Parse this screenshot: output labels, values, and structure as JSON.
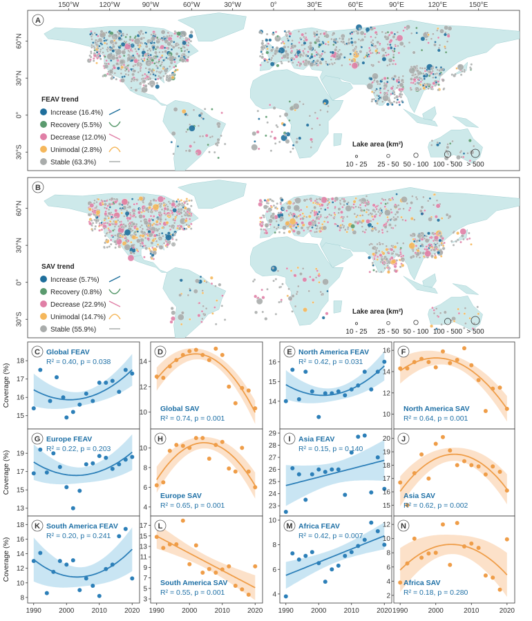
{
  "colors": {
    "increase": "#1f6f9c",
    "recovery": "#5a9a6e",
    "decrease": "#e07fa6",
    "unimodal": "#f5b75b",
    "stable": "#a9acab",
    "land": "#cde9ea",
    "feav_line": "#2c7fb8",
    "feav_band": "#bfe1f1",
    "sav_line": "#ef9d48",
    "sav_band": "#fbdcbf",
    "feav_text": "#1d6fa5",
    "sav_text": "#1d6fa5"
  },
  "maps": {
    "lon_ticks": [
      "150°W",
      "120°W",
      "90°W",
      "60°W",
      "30°W",
      "0°",
      "30°E",
      "60°E",
      "90°E",
      "120°E",
      "150°E"
    ],
    "lat_ticks": [
      "60°N",
      "30°N",
      "0°",
      "30°S"
    ],
    "size_legend": {
      "title": "Lake area (km²)",
      "labels": [
        "10 - 25",
        "25 - 50",
        "50 - 100",
        "100 - 500",
        "> 500"
      ]
    },
    "panels": [
      {
        "letter": "A",
        "legend_title": "FEAV trend",
        "legend": [
          {
            "key": "increase",
            "label": "Increase (16.4%)"
          },
          {
            "key": "recovery",
            "label": "Recovery (5.5%)"
          },
          {
            "key": "decrease",
            "label": "Decrease (12.0%)"
          },
          {
            "key": "unimodal",
            "label": "Unimodal (2.8%)"
          },
          {
            "key": "stable",
            "label": "Stable (63.3%)"
          }
        ]
      },
      {
        "letter": "B",
        "legend_title": "SAV trend",
        "legend": [
          {
            "key": "increase",
            "label": "Increase (5.7%)"
          },
          {
            "key": "recovery",
            "label": "Recovery (0.8%)"
          },
          {
            "key": "decrease",
            "label": "Decrease (22.9%)"
          },
          {
            "key": "unimodal",
            "label": "Unimodal (14.7%)"
          },
          {
            "key": "stable",
            "label": "Stable (55.9%)"
          }
        ]
      }
    ]
  },
  "chart_data": [
    {
      "letter": "C",
      "type": "scatter",
      "kind": "feav",
      "title": "Global FEAV",
      "stat": "R² = 0.40, p = 0.038",
      "ylim": [
        14.5,
        18.8
      ],
      "yticks": [
        15,
        16,
        17,
        18
      ],
      "fit": "quadratic",
      "x": [
        1990,
        1992,
        1995,
        1997,
        1999,
        2000,
        2002,
        2004,
        2006,
        2008,
        2010,
        2012,
        2014,
        2016,
        2018,
        2020
      ],
      "y": [
        15.4,
        17.5,
        15.8,
        17.1,
        16.0,
        14.9,
        15.2,
        15.6,
        16.2,
        15.8,
        16.8,
        16.8,
        16.9,
        16.3,
        17.5,
        17.3
      ]
    },
    {
      "letter": "D",
      "type": "scatter",
      "kind": "sav",
      "title": "Global SAV",
      "stat": "R² = 0.74, p = 0.001",
      "ylim": [
        9.0,
        15.2
      ],
      "yticks": [
        10,
        12,
        14
      ],
      "fit": "quadratic",
      "x": [
        1990,
        1992,
        1994,
        1996,
        1998,
        2000,
        2002,
        2004,
        2006,
        2008,
        2010,
        2012,
        2014,
        2016,
        2018,
        2020
      ],
      "y": [
        12.8,
        12.7,
        13.6,
        14.1,
        14.5,
        14.8,
        14.9,
        14.5,
        14.1,
        15.0,
        14.5,
        12.0,
        10.7,
        11.9,
        11.7,
        10.3
      ]
    },
    {
      "letter": "E",
      "type": "scatter",
      "kind": "feav",
      "title": "North America FEAV",
      "stat": "R² = 0.42, p = 0.031",
      "ylim": [
        12.8,
        16.8
      ],
      "yticks": [
        14,
        15,
        16
      ],
      "fit": "quadratic",
      "x": [
        1990,
        1992,
        1994,
        1996,
        1998,
        2000,
        2002,
        2004,
        2006,
        2008,
        2010,
        2012,
        2014,
        2016,
        2018,
        2020
      ],
      "y": [
        14.0,
        15.6,
        14.1,
        15.5,
        14.5,
        13.2,
        14.4,
        14.4,
        14.5,
        14.3,
        14.6,
        14.8,
        15.5,
        14.6,
        15.5,
        16.0
      ]
    },
    {
      "letter": "F",
      "type": "scatter",
      "kind": "sav",
      "title": "North America SAV",
      "stat": "R² = 0.64, p = 0.001",
      "ylim": [
        9.0,
        16.4
      ],
      "yticks": [
        10,
        12,
        14,
        16
      ],
      "fit": "quadratic",
      "x": [
        1990,
        1992,
        1994,
        1996,
        1998,
        2000,
        2002,
        2004,
        2006,
        2008,
        2010,
        2012,
        2014,
        2016,
        2018,
        2020
      ],
      "y": [
        14.3,
        14.3,
        14.9,
        15.2,
        14.9,
        14.4,
        15.9,
        14.8,
        15.1,
        16.2,
        14.6,
        13.2,
        10.3,
        12.4,
        12.5,
        10.5
      ]
    },
    {
      "letter": "G",
      "type": "scatter",
      "kind": "feav",
      "title": "Europe FEAV",
      "stat": "R² = 0.22, p = 0.203",
      "ylim": [
        12.6,
        21.2
      ],
      "yticks": [
        13,
        15,
        17,
        19
      ],
      "fit": "quadratic",
      "x": [
        1990,
        1992,
        1994,
        1996,
        1998,
        2000,
        2002,
        2004,
        2006,
        2008,
        2010,
        2012,
        2014,
        2016,
        2018,
        2020
      ],
      "y": [
        16.8,
        19.4,
        16.9,
        19.0,
        17.5,
        15.3,
        13.0,
        14.9,
        17.8,
        17.9,
        18.7,
        18.5,
        17.3,
        17.8,
        18.3,
        18.6
      ]
    },
    {
      "letter": "H",
      "type": "scatter",
      "kind": "sav",
      "title": "Europe SAV",
      "stat": "R² = 0.65, p = 0.001",
      "ylim": [
        3.5,
        11.5
      ],
      "yticks": [
        4,
        6,
        8,
        10
      ],
      "fit": "quadratic",
      "x": [
        1990,
        1992,
        1994,
        1996,
        1998,
        2000,
        2002,
        2004,
        2006,
        2008,
        2010,
        2012,
        2014,
        2016,
        2018,
        2020
      ],
      "y": [
        6.2,
        6.5,
        9.7,
        10.3,
        10.2,
        10.0,
        11.0,
        11.0,
        8.9,
        10.3,
        10.6,
        7.9,
        7.6,
        10.0,
        7.6,
        6.0
      ]
    },
    {
      "letter": "I",
      "type": "scatter",
      "kind": "feav",
      "title": "Asia FEAV",
      "stat": "R² = 0.15, p = 0.140",
      "ylim": [
        22.5,
        29.0
      ],
      "yticks": [
        23,
        24,
        25,
        26,
        27,
        28,
        29
      ],
      "fit": "linear",
      "x": [
        1990,
        1992,
        1994,
        1996,
        1998,
        2000,
        2002,
        2004,
        2006,
        2008,
        2010,
        2012,
        2014,
        2016,
        2018,
        2020
      ],
      "y": [
        22.5,
        26.1,
        25.6,
        23.5,
        25.6,
        26.0,
        25.8,
        26.0,
        26.0,
        23.9,
        27.4,
        28.7,
        28.8,
        24.1,
        27.0,
        24.4
      ]
    },
    {
      "letter": "J",
      "type": "scatter",
      "kind": "sav",
      "title": "Asia SAV",
      "stat": "R² = 0.62, p = 0.002",
      "ylim": [
        14.5,
        20.4
      ],
      "yticks": [
        15,
        16,
        17,
        18,
        19,
        20
      ],
      "fit": "quadratic",
      "x": [
        1990,
        1992,
        1994,
        1996,
        1998,
        2000,
        2002,
        2004,
        2006,
        2008,
        2010,
        2012,
        2014,
        2016,
        2018,
        2020
      ],
      "y": [
        16.7,
        15.0,
        17.4,
        18.8,
        17.0,
        19.6,
        20.1,
        19.1,
        18.0,
        18.3,
        18.0,
        17.9,
        17.3,
        17.9,
        17.5,
        16.1
      ]
    },
    {
      "letter": "K",
      "type": "scatter",
      "kind": "feav",
      "title": "South America FEAV",
      "stat": "R² = 0.20, p = 0.241",
      "ylim": [
        7.8,
        18.6
      ],
      "yticks": [
        8,
        10,
        12,
        14,
        16,
        18
      ],
      "fit": "quadratic",
      "x": [
        1990,
        1992,
        1994,
        1996,
        1998,
        2000,
        2002,
        2004,
        2006,
        2008,
        2010,
        2012,
        2014,
        2016,
        2018,
        2020
      ],
      "y": [
        13.0,
        14.1,
        8.6,
        11.5,
        13.0,
        12.5,
        13.1,
        9.0,
        10.6,
        9.6,
        8.2,
        11.9,
        12.5,
        16.4,
        17.4,
        10.6
      ]
    },
    {
      "letter": "L",
      "type": "scatter",
      "kind": "sav",
      "title": "South America SAV",
      "stat": "R² = 0.55, p = 0.001",
      "ylim": [
        3.0,
        18.0
      ],
      "yticks": [
        3,
        5,
        7,
        9,
        11,
        13,
        15,
        17
      ],
      "fit": "linear",
      "x": [
        1990,
        1992,
        1994,
        1996,
        1998,
        2000,
        2002,
        2004,
        2006,
        2008,
        2010,
        2012,
        2014,
        2016,
        2018,
        2020
      ],
      "y": [
        14.8,
        12.7,
        13.4,
        13.4,
        17.9,
        9.6,
        13.2,
        8.0,
        8.7,
        8.0,
        8.6,
        9.2,
        5.5,
        4.8,
        3.8,
        9.2
      ]
    },
    {
      "letter": "M",
      "type": "scatter",
      "kind": "feav",
      "title": "Africa FEAV",
      "stat": "R² = 0.42, p = 0.007",
      "ylim": [
        3.6,
        10.0
      ],
      "yticks": [
        4,
        6,
        8,
        10
      ],
      "fit": "linear",
      "x": [
        1990,
        1992,
        1994,
        1996,
        1998,
        2000,
        2002,
        2004,
        2006,
        2008,
        2010,
        2012,
        2014,
        2016,
        2018,
        2020
      ],
      "y": [
        3.8,
        7.3,
        6.8,
        7.1,
        7.4,
        6.5,
        5.0,
        6.0,
        6.3,
        7.1,
        7.4,
        7.9,
        8.4,
        9.8,
        9.1,
        8.0
      ]
    },
    {
      "letter": "N",
      "type": "scatter",
      "kind": "sav",
      "title": "Africa SAV",
      "stat": "R² = 0.18, p = 0.280",
      "ylim": [
        1.5,
        12.6
      ],
      "yticks": [
        2,
        4,
        6,
        8,
        10,
        12
      ],
      "fit": "quadratic",
      "x": [
        1990,
        1992,
        1994,
        1996,
        1998,
        2000,
        2002,
        2004,
        2006,
        2008,
        2010,
        2012,
        2014,
        2016,
        2018,
        2020
      ],
      "y": [
        3.8,
        6.5,
        10.0,
        7.3,
        7.9,
        8.0,
        12.0,
        6.3,
        12.2,
        8.9,
        9.3,
        8.7,
        4.8,
        4.5,
        2.8,
        9.9
      ]
    }
  ],
  "x_ticks": [
    "1990",
    "2000",
    "2010",
    "2020"
  ],
  "y_axis_label": "Coverage (%)"
}
